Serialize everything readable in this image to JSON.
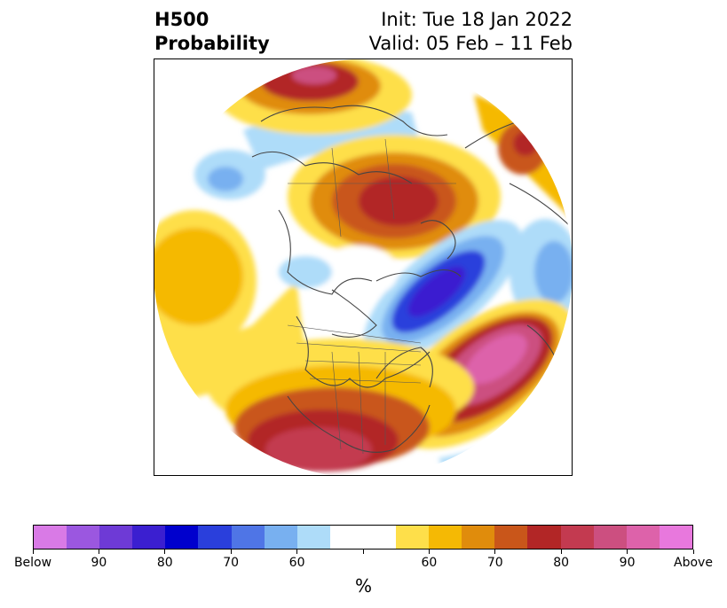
{
  "title": {
    "left_line1": "H500",
    "left_line2": "Probability",
    "right_line1": "Init: Tue 18 Jan 2022",
    "right_line2": "Valid: 05 Feb – 11 Feb"
  },
  "colorbar": {
    "label": "%",
    "colors": [
      "#d97ae6",
      "#9b57e0",
      "#6e3ad6",
      "#3b1fd0",
      "#0000cd",
      "#2a3fdc",
      "#4f75e6",
      "#78b0f0",
      "#aedcf9",
      "#ffffff",
      "#ffffff",
      "#fedf4a",
      "#f5b904",
      "#e08c0c",
      "#c9561a",
      "#b22626",
      "#c33a50",
      "#cc4f80",
      "#dd62aa",
      "#e878dd"
    ],
    "tick_labels": [
      {
        "text": "Below",
        "frac": 0.0
      },
      {
        "text": "90",
        "frac": 0.1
      },
      {
        "text": "80",
        "frac": 0.2
      },
      {
        "text": "70",
        "frac": 0.3
      },
      {
        "text": "60",
        "frac": 0.4
      },
      {
        "text": "",
        "frac": 0.5
      },
      {
        "text": "60",
        "frac": 0.6
      },
      {
        "text": "70",
        "frac": 0.7
      },
      {
        "text": "80",
        "frac": 0.8
      },
      {
        "text": "90",
        "frac": 0.9
      },
      {
        "text": "Above",
        "frac": 1.0
      }
    ]
  }
}
